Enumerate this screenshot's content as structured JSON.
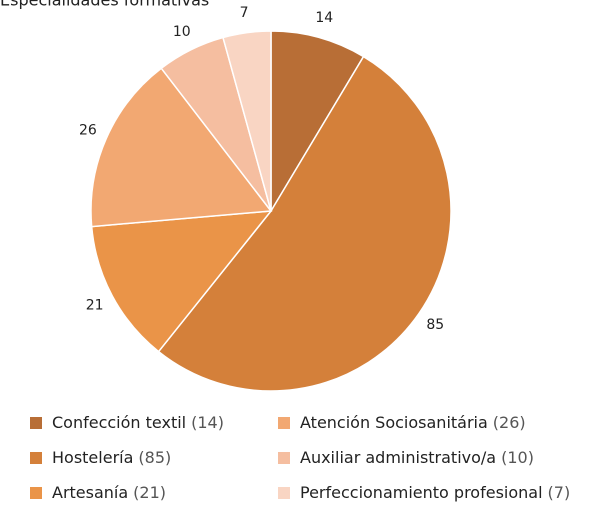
{
  "chart_data": {
    "type": "pie",
    "title": "Especialidades formativas",
    "categories": [
      "Confección textil",
      "Hostelería",
      "Artesanía",
      "Atención Sociosanitária",
      "Auxiliar administrativo/a",
      "Perfeccionamiento profesional"
    ],
    "values": [
      14,
      85,
      21,
      26,
      10,
      7
    ],
    "value_labels": [
      "(14)",
      "(85)",
      "(21)",
      "(26)",
      "(10)",
      "(7)"
    ],
    "colors": [
      "#b86e36",
      "#d4803a",
      "#ea9448",
      "#f2a872",
      "#f5bea0",
      "#f9d5c3"
    ],
    "legend": "bottom"
  }
}
